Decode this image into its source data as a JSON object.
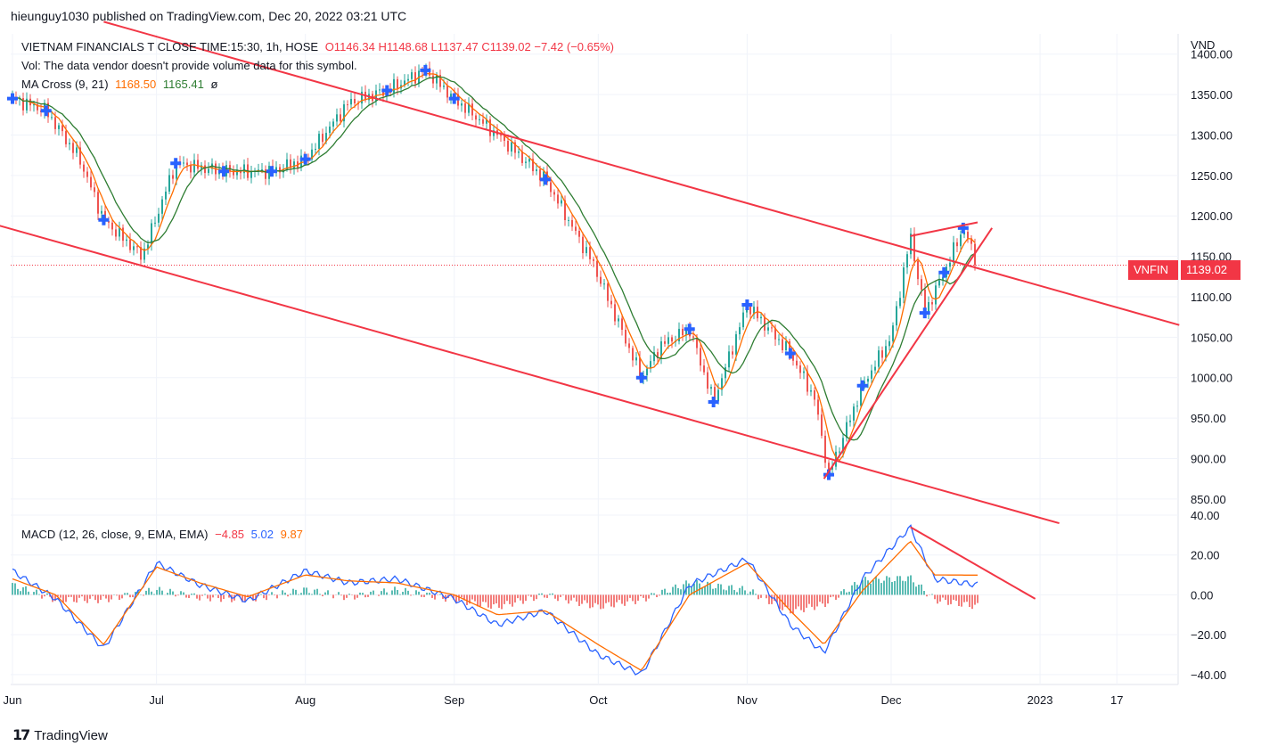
{
  "header": {
    "published": "hieunguy1030 published on TradingView.com, Dec 20, 2022 03:21 UTC"
  },
  "legend": {
    "symbol": "VIETNAM FINANCIALS T CLOSE TIME:15:30, 1h, HOSE",
    "ohlc": "O1146.34 H1148.68 L1137.47 C1139.02 −7.42 (−0.65%)",
    "vol": "Vol: The data vendor doesn't provide volume data for this symbol.",
    "ma_name": "MA Cross (9, 21)",
    "ma_fast": "1168.50",
    "ma_slow": "1165.41",
    "ma_icon": "ø",
    "macd_name": "MACD (12, 26, close, 9, EMA, EMA)",
    "macd_hist": "−4.85",
    "macd_line": "5.02",
    "macd_signal": "9.87"
  },
  "price_axis": {
    "currency": "VND",
    "ticks": [
      "1400.00",
      "1350.00",
      "1300.00",
      "1250.00",
      "1200.00",
      "1150.00",
      "1100.00",
      "1050.00",
      "1000.00",
      "950.00",
      "900.00",
      "850.00"
    ]
  },
  "macd_axis": {
    "ticks": [
      "40.00",
      "20.00",
      "0.00",
      "−20.00",
      "−40.00"
    ]
  },
  "time_axis": {
    "ticks": [
      "Jun",
      "Jul",
      "Aug",
      "Sep",
      "Oct",
      "Nov",
      "Dec",
      "2023",
      "17"
    ]
  },
  "last_price": {
    "symbol": "VNFIN",
    "value": "1139.02"
  },
  "brand": {
    "name": "TradingView",
    "logo": "tradingview-logo"
  },
  "colors": {
    "up": "#26a69a",
    "down": "#ef5350",
    "ma_fast": "#ff6d00",
    "ma_slow": "#2e7d32",
    "trend": "#f23645",
    "cross": "#2962ff",
    "macd": "#2962ff",
    "signal": "#ff6d00"
  },
  "chart_data": [
    {
      "type": "line",
      "title": "VIETNAM FINANCIALS T CLOSE TIME:15:30, 1h, HOSE",
      "ylabel": "VND",
      "ylim": [
        830,
        1425
      ],
      "x": [
        "Jun 1",
        "Jun 8",
        "Jun 15",
        "Jun 20",
        "Jun 28",
        "Jul 5",
        "Jul 15",
        "Jul 25",
        "Aug 1",
        "Aug 10",
        "Aug 18",
        "Aug 26",
        "Sep 1",
        "Sep 10",
        "Sep 20",
        "Sep 30",
        "Oct 10",
        "Oct 14",
        "Oct 20",
        "Oct 25",
        "Nov 1",
        "Nov 7",
        "Nov 10",
        "Nov 15",
        "Nov 18",
        "Nov 25",
        "Dec 1",
        "Dec 5",
        "Dec 8",
        "Dec 12",
        "Dec 16",
        "Dec 19"
      ],
      "series": [
        {
          "values": [
            1345,
            1330,
            1270,
            1195,
            1150,
            1265,
            1255,
            1255,
            1270,
            1340,
            1355,
            1380,
            1345,
            1300,
            1245,
            1140,
            1000,
            1040,
            1060,
            970,
            1090,
            1050,
            1030,
            975,
            880,
            990,
            1050,
            1175,
            1080,
            1130,
            1185,
            1140
          ]
        }
      ],
      "trendlines": [
        {
          "from": [
            "May 25",
            1195
          ],
          "to": [
            "Jan 5",
            820
          ]
        },
        {
          "from": [
            "Jun 20",
            1440
          ],
          "to": [
            "Jan 30",
            1065
          ]
        },
        {
          "from": [
            "Nov 17",
            875
          ],
          "to": [
            "Dec 22",
            1185
          ]
        },
        {
          "from": [
            "Dec 5",
            1175
          ],
          "to": [
            "Dec 19",
            1192
          ]
        }
      ],
      "last_value": 1139.02,
      "grid": true
    },
    {
      "type": "line",
      "title": "MACD (12, 26, close, 9, EMA, EMA)",
      "ylim": [
        -45,
        40
      ],
      "x": [
        "Jun 1",
        "Jun 10",
        "Jun 20",
        "Jul 1",
        "Jul 10",
        "Jul 20",
        "Aug 1",
        "Aug 10",
        "Aug 20",
        "Sep 1",
        "Sep 10",
        "Sep 20",
        "Oct 1",
        "Oct 10",
        "Oct 20",
        "Nov 1",
        "Nov 10",
        "Nov 17",
        "Nov 25",
        "Dec 5",
        "Dec 10",
        "Dec 19"
      ],
      "series": [
        {
          "name": "MACD",
          "values": [
            12,
            -2,
            -27,
            16,
            5,
            -3,
            12,
            6,
            8,
            -2,
            -15,
            -8,
            -30,
            -40,
            5,
            18,
            -15,
            -29,
            8,
            34,
            8,
            5
          ]
        },
        {
          "name": "Signal",
          "values": [
            8,
            0,
            -25,
            14,
            6,
            -1,
            10,
            7,
            6,
            0,
            -10,
            -8,
            -25,
            -38,
            0,
            16,
            -8,
            -25,
            2,
            27,
            10,
            9.87
          ]
        }
      ],
      "histogram_last": -4.85,
      "trendlines": [
        {
          "from": [
            "Dec 5",
            34
          ],
          "to": [
            "Dec 31",
            -2
          ]
        }
      ]
    }
  ]
}
